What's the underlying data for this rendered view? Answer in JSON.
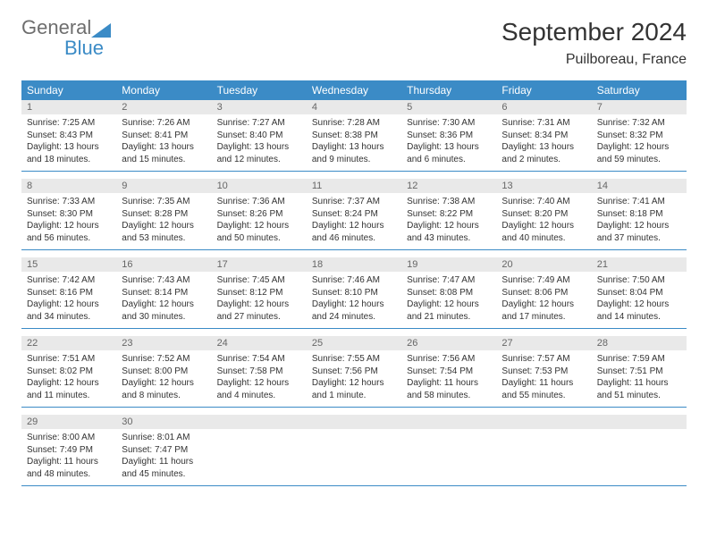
{
  "logo": {
    "word1": "General",
    "word2": "Blue",
    "text_color": "#6e6e6e",
    "accent_color": "#3b8bc6"
  },
  "title": "September 2024",
  "location": "Puilboreau, France",
  "header_bg": "#3b8bc6",
  "header_text_color": "#ffffff",
  "day_number_bg": "#e9e9e9",
  "weekdays": [
    "Sunday",
    "Monday",
    "Tuesday",
    "Wednesday",
    "Thursday",
    "Friday",
    "Saturday"
  ],
  "weeks": [
    [
      {
        "num": "1",
        "sunrise": "Sunrise: 7:25 AM",
        "sunset": "Sunset: 8:43 PM",
        "daylight": "Daylight: 13 hours and 18 minutes."
      },
      {
        "num": "2",
        "sunrise": "Sunrise: 7:26 AM",
        "sunset": "Sunset: 8:41 PM",
        "daylight": "Daylight: 13 hours and 15 minutes."
      },
      {
        "num": "3",
        "sunrise": "Sunrise: 7:27 AM",
        "sunset": "Sunset: 8:40 PM",
        "daylight": "Daylight: 13 hours and 12 minutes."
      },
      {
        "num": "4",
        "sunrise": "Sunrise: 7:28 AM",
        "sunset": "Sunset: 8:38 PM",
        "daylight": "Daylight: 13 hours and 9 minutes."
      },
      {
        "num": "5",
        "sunrise": "Sunrise: 7:30 AM",
        "sunset": "Sunset: 8:36 PM",
        "daylight": "Daylight: 13 hours and 6 minutes."
      },
      {
        "num": "6",
        "sunrise": "Sunrise: 7:31 AM",
        "sunset": "Sunset: 8:34 PM",
        "daylight": "Daylight: 13 hours and 2 minutes."
      },
      {
        "num": "7",
        "sunrise": "Sunrise: 7:32 AM",
        "sunset": "Sunset: 8:32 PM",
        "daylight": "Daylight: 12 hours and 59 minutes."
      }
    ],
    [
      {
        "num": "8",
        "sunrise": "Sunrise: 7:33 AM",
        "sunset": "Sunset: 8:30 PM",
        "daylight": "Daylight: 12 hours and 56 minutes."
      },
      {
        "num": "9",
        "sunrise": "Sunrise: 7:35 AM",
        "sunset": "Sunset: 8:28 PM",
        "daylight": "Daylight: 12 hours and 53 minutes."
      },
      {
        "num": "10",
        "sunrise": "Sunrise: 7:36 AM",
        "sunset": "Sunset: 8:26 PM",
        "daylight": "Daylight: 12 hours and 50 minutes."
      },
      {
        "num": "11",
        "sunrise": "Sunrise: 7:37 AM",
        "sunset": "Sunset: 8:24 PM",
        "daylight": "Daylight: 12 hours and 46 minutes."
      },
      {
        "num": "12",
        "sunrise": "Sunrise: 7:38 AM",
        "sunset": "Sunset: 8:22 PM",
        "daylight": "Daylight: 12 hours and 43 minutes."
      },
      {
        "num": "13",
        "sunrise": "Sunrise: 7:40 AM",
        "sunset": "Sunset: 8:20 PM",
        "daylight": "Daylight: 12 hours and 40 minutes."
      },
      {
        "num": "14",
        "sunrise": "Sunrise: 7:41 AM",
        "sunset": "Sunset: 8:18 PM",
        "daylight": "Daylight: 12 hours and 37 minutes."
      }
    ],
    [
      {
        "num": "15",
        "sunrise": "Sunrise: 7:42 AM",
        "sunset": "Sunset: 8:16 PM",
        "daylight": "Daylight: 12 hours and 34 minutes."
      },
      {
        "num": "16",
        "sunrise": "Sunrise: 7:43 AM",
        "sunset": "Sunset: 8:14 PM",
        "daylight": "Daylight: 12 hours and 30 minutes."
      },
      {
        "num": "17",
        "sunrise": "Sunrise: 7:45 AM",
        "sunset": "Sunset: 8:12 PM",
        "daylight": "Daylight: 12 hours and 27 minutes."
      },
      {
        "num": "18",
        "sunrise": "Sunrise: 7:46 AM",
        "sunset": "Sunset: 8:10 PM",
        "daylight": "Daylight: 12 hours and 24 minutes."
      },
      {
        "num": "19",
        "sunrise": "Sunrise: 7:47 AM",
        "sunset": "Sunset: 8:08 PM",
        "daylight": "Daylight: 12 hours and 21 minutes."
      },
      {
        "num": "20",
        "sunrise": "Sunrise: 7:49 AM",
        "sunset": "Sunset: 8:06 PM",
        "daylight": "Daylight: 12 hours and 17 minutes."
      },
      {
        "num": "21",
        "sunrise": "Sunrise: 7:50 AM",
        "sunset": "Sunset: 8:04 PM",
        "daylight": "Daylight: 12 hours and 14 minutes."
      }
    ],
    [
      {
        "num": "22",
        "sunrise": "Sunrise: 7:51 AM",
        "sunset": "Sunset: 8:02 PM",
        "daylight": "Daylight: 12 hours and 11 minutes."
      },
      {
        "num": "23",
        "sunrise": "Sunrise: 7:52 AM",
        "sunset": "Sunset: 8:00 PM",
        "daylight": "Daylight: 12 hours and 8 minutes."
      },
      {
        "num": "24",
        "sunrise": "Sunrise: 7:54 AM",
        "sunset": "Sunset: 7:58 PM",
        "daylight": "Daylight: 12 hours and 4 minutes."
      },
      {
        "num": "25",
        "sunrise": "Sunrise: 7:55 AM",
        "sunset": "Sunset: 7:56 PM",
        "daylight": "Daylight: 12 hours and 1 minute."
      },
      {
        "num": "26",
        "sunrise": "Sunrise: 7:56 AM",
        "sunset": "Sunset: 7:54 PM",
        "daylight": "Daylight: 11 hours and 58 minutes."
      },
      {
        "num": "27",
        "sunrise": "Sunrise: 7:57 AM",
        "sunset": "Sunset: 7:53 PM",
        "daylight": "Daylight: 11 hours and 55 minutes."
      },
      {
        "num": "28",
        "sunrise": "Sunrise: 7:59 AM",
        "sunset": "Sunset: 7:51 PM",
        "daylight": "Daylight: 11 hours and 51 minutes."
      }
    ],
    [
      {
        "num": "29",
        "sunrise": "Sunrise: 8:00 AM",
        "sunset": "Sunset: 7:49 PM",
        "daylight": "Daylight: 11 hours and 48 minutes."
      },
      {
        "num": "30",
        "sunrise": "Sunrise: 8:01 AM",
        "sunset": "Sunset: 7:47 PM",
        "daylight": "Daylight: 11 hours and 45 minutes."
      },
      null,
      null,
      null,
      null,
      null
    ]
  ]
}
